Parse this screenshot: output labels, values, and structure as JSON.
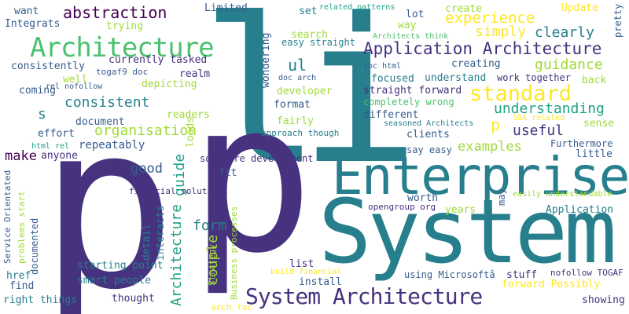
{
  "words": [
    {
      "id": "li",
      "text": "li",
      "color": "#277f8e"
    },
    {
      "id": "p-left",
      "text": "p",
      "color": "#46327e"
    },
    {
      "id": "p-center",
      "text": "p",
      "color": "#46327e"
    },
    {
      "id": "system",
      "text": "System",
      "color": "#277f8e"
    },
    {
      "id": "enterprise",
      "text": "Enterprise",
      "color": "#277f8e"
    },
    {
      "id": "system-architecture",
      "text": "System Architecture",
      "color": "#46327e"
    },
    {
      "id": "architecture",
      "text": "Architecture",
      "color": "#4ac16d"
    },
    {
      "id": "application-architecture",
      "text": "Application Architecture",
      "color": "#46327e"
    },
    {
      "id": "standard",
      "text": "standard",
      "color": "#fde725"
    },
    {
      "id": "abstraction",
      "text": "abstraction",
      "color": "#440154"
    },
    {
      "id": "experience",
      "text": "experience",
      "color": "#fde725"
    },
    {
      "id": "simply",
      "text": "simply",
      "color": "#fde725"
    },
    {
      "id": "clearly",
      "text": "clearly",
      "color": "#277f8e"
    },
    {
      "id": "guidance",
      "text": "guidance",
      "color": "#a0da39"
    },
    {
      "id": "understanding",
      "text": "understanding",
      "color": "#1fa187"
    },
    {
      "id": "useful",
      "text": "useful",
      "color": "#46327e"
    },
    {
      "id": "consistent",
      "text": "consistent",
      "color": "#277f8e"
    },
    {
      "id": "organisation",
      "text": "organisation",
      "color": "#a0da39"
    },
    {
      "id": "examples",
      "text": "examples",
      "color": "#a0da39"
    },
    {
      "id": "repeatably",
      "text": "repeatably",
      "color": "#365c8d"
    },
    {
      "id": "make",
      "text": "make",
      "color": "#440154"
    },
    {
      "id": "good",
      "text": "good",
      "color": "#365c8d"
    },
    {
      "id": "ul",
      "text": "ul",
      "color": "#277f8e"
    },
    {
      "id": "s",
      "text": "s",
      "color": "#277f8e"
    },
    {
      "id": "p-small",
      "text": "p",
      "color": "#fde725"
    },
    {
      "id": "guide",
      "text": "guide",
      "color": "#1fa187"
    },
    {
      "id": "form",
      "text": "form",
      "color": "#277f8e"
    },
    {
      "id": "couple",
      "text": "couple",
      "color": "#a0da39"
    },
    {
      "id": "architecture-vertical",
      "text": "Architecture",
      "color": "#1fa187"
    },
    {
      "id": "want",
      "text": "want",
      "color": "#365c8d"
    },
    {
      "id": "integrats",
      "text": "Integrats",
      "color": "#365c8d"
    },
    {
      "id": "trying",
      "text": "trying",
      "color": "#a0da39"
    },
    {
      "id": "limited",
      "text": "Limited",
      "color": "#365c8d"
    },
    {
      "id": "set",
      "text": "set",
      "color": "#277f8e"
    },
    {
      "id": "related-patterns",
      "text": "related patterns",
      "color": "#1fa187"
    },
    {
      "id": "lot",
      "text": "lot",
      "color": "#365c8d"
    },
    {
      "id": "create",
      "text": "create",
      "color": "#a0da39"
    },
    {
      "id": "update",
      "text": "Update",
      "color": "#fde725"
    },
    {
      "id": "pretty",
      "text": "pretty",
      "color": "#365c8d"
    },
    {
      "id": "way",
      "text": "way",
      "color": "#a0da39"
    },
    {
      "id": "search",
      "text": "search",
      "color": "#a0da39"
    },
    {
      "id": "easy-straight",
      "text": "easy straight",
      "color": "#277f8e"
    },
    {
      "id": "architects-think",
      "text": "Architects think",
      "color": "#4ac16d"
    },
    {
      "id": "consistently",
      "text": "consistently",
      "color": "#365c8d"
    },
    {
      "id": "currently-tasked",
      "text": "currently tasked",
      "color": "#46327e"
    },
    {
      "id": "togaf9-doc",
      "text": "togaf9 doc",
      "color": "#365c8d"
    },
    {
      "id": "well",
      "text": "well",
      "color": "#a0da39"
    },
    {
      "id": "rel-nofollow",
      "text": "rel nofollow",
      "color": "#365c8d"
    },
    {
      "id": "coming",
      "text": "coming",
      "color": "#365c8d"
    },
    {
      "id": "depicting",
      "text": "depicting",
      "color": "#a0da39"
    },
    {
      "id": "realm",
      "text": "realm",
      "color": "#46327e"
    },
    {
      "id": "wondering",
      "text": "wondering",
      "color": "#365c8d"
    },
    {
      "id": "toc-html",
      "text": "toc html",
      "color": "#365c8d"
    },
    {
      "id": "creating",
      "text": "creating",
      "color": "#365c8d"
    },
    {
      "id": "focused",
      "text": "focused",
      "color": "#277f8e"
    },
    {
      "id": "understand",
      "text": "understand",
      "color": "#277f8e"
    },
    {
      "id": "work-together",
      "text": "work together",
      "color": "#46327e"
    },
    {
      "id": "back",
      "text": "back",
      "color": "#a0da39"
    },
    {
      "id": "doc-arch",
      "text": "doc arch",
      "color": "#365c8d"
    },
    {
      "id": "developer",
      "text": "developer",
      "color": "#a0da39"
    },
    {
      "id": "straight-forward",
      "text": "straight forward",
      "color": "#46327e"
    },
    {
      "id": "completely-wrong",
      "text": "completely wrong",
      "color": "#4ac16d"
    },
    {
      "id": "format",
      "text": "format",
      "color": "#365c8d"
    },
    {
      "id": "document",
      "text": "document",
      "color": "#365c8d"
    },
    {
      "id": "readers",
      "text": "readers",
      "color": "#a0da39"
    },
    {
      "id": "loads",
      "text": "loads",
      "color": "#a0da39"
    },
    {
      "id": "effort",
      "text": "effort",
      "color": "#365c8d"
    },
    {
      "id": "html-rel",
      "text": "html rel",
      "color": "#1fa187"
    },
    {
      "id": "anyone",
      "text": "anyone",
      "color": "#46327e"
    },
    {
      "id": "fairly",
      "text": "fairly",
      "color": "#a0da39"
    },
    {
      "id": "approach-though",
      "text": "approach though",
      "color": "#277f8e"
    },
    {
      "id": "different",
      "text": "different",
      "color": "#365c8d"
    },
    {
      "id": "seasoned-architects",
      "text": "seasoned Architects",
      "color": "#277f8e"
    },
    {
      "id": "soa-related",
      "text": "SOA related",
      "color": "#fde725"
    },
    {
      "id": "sense",
      "text": "sense",
      "color": "#a0da39"
    },
    {
      "id": "clients",
      "text": "clients",
      "color": "#365c8d"
    },
    {
      "id": "say-easy",
      "text": "say easy",
      "color": "#365c8d"
    },
    {
      "id": "furthermore",
      "text": "Furthermore",
      "color": "#365c8d"
    },
    {
      "id": "little",
      "text": "little",
      "color": "#365c8d"
    },
    {
      "id": "software-development",
      "text": "software development",
      "color": "#46327e"
    },
    {
      "id": "fit",
      "text": "fit",
      "color": "#365c8d"
    },
    {
      "id": "financial-solutions",
      "text": "financial solutions",
      "color": "#46327e"
    },
    {
      "id": "easily-understandable",
      "text": "easily understandable",
      "color": "#a0da39"
    },
    {
      "id": "worth",
      "text": "worth",
      "color": "#365c8d"
    },
    {
      "id": "may",
      "text": "may",
      "color": "#365c8d"
    },
    {
      "id": "opengroup-org",
      "text": "opengroup org",
      "color": "#46327e"
    },
    {
      "id": "application",
      "text": "Application",
      "color": "#277f8e"
    },
    {
      "id": "years",
      "text": "years",
      "color": "#a0da39"
    },
    {
      "id": "detail",
      "text": "detail",
      "color": "#277f8e"
    },
    {
      "id": "interacts",
      "text": "interacts",
      "color": "#277f8e"
    },
    {
      "id": "service-orientated",
      "text": "Service Orientated",
      "color": "#365c8d"
    },
    {
      "id": "problems-start",
      "text": "problems start",
      "color": "#a0da39"
    },
    {
      "id": "documented",
      "text": "documented",
      "color": "#365c8d"
    },
    {
      "id": "starting-point",
      "text": "starting point",
      "color": "#277f8e"
    },
    {
      "id": "list",
      "text": "list",
      "color": "#46327e"
    },
    {
      "id": "strategy",
      "text": "Strategy",
      "color": "#a0da39"
    },
    {
      "id": "business-processes",
      "text": "Business processes",
      "color": "#a0da39"
    },
    {
      "id": "build-financial",
      "text": "build financial",
      "color": "#fde725"
    },
    {
      "id": "install",
      "text": "install",
      "color": "#365c8d"
    },
    {
      "id": "using-microsofta",
      "text": "using Microsoftâ",
      "color": "#365c8d"
    },
    {
      "id": "stuff",
      "text": "stuff",
      "color": "#46327e"
    },
    {
      "id": "nofollow-togaf",
      "text": "nofollow TOGAF",
      "color": "#46327e"
    },
    {
      "id": "forward-possibly",
      "text": "forward Possibly",
      "color": "#fde725"
    },
    {
      "id": "href",
      "text": "href",
      "color": "#277f8e"
    },
    {
      "id": "find",
      "text": "find",
      "color": "#365c8d"
    },
    {
      "id": "smart-people",
      "text": "smart people",
      "color": "#277f8e"
    },
    {
      "id": "right-things",
      "text": "right things",
      "color": "#277f8e"
    },
    {
      "id": "thought",
      "text": "thought",
      "color": "#46327e"
    },
    {
      "id": "arch-toc",
      "text": "arch toc",
      "color": "#fde725"
    },
    {
      "id": "showing",
      "text": "showing",
      "color": "#46327e"
    }
  ]
}
